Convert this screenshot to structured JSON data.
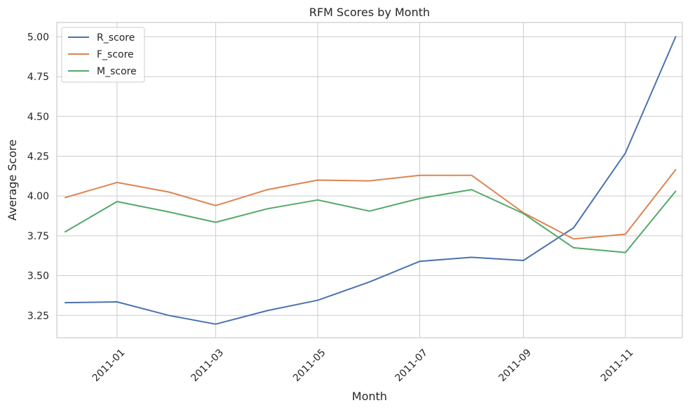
{
  "chart_data": {
    "type": "line",
    "title": "RFM Scores by Month",
    "xlabel": "Month",
    "ylabel": "Average Score",
    "x": [
      "2010-12",
      "2011-01",
      "2011-02",
      "2011-03",
      "2011-04",
      "2011-05",
      "2011-06",
      "2011-07",
      "2011-08",
      "2011-09",
      "2011-10",
      "2011-11",
      "2011-12"
    ],
    "x_tick_labels": [
      "2011-01",
      "2011-03",
      "2011-05",
      "2011-07",
      "2011-09",
      "2011-11"
    ],
    "x_tick_values": [
      "2011-01",
      "2011-03",
      "2011-05",
      "2011-07",
      "2011-09",
      "2011-11"
    ],
    "x_range": [
      "2010-11-26",
      "2011-12-05"
    ],
    "y_ticks": [
      3.25,
      3.5,
      3.75,
      4.0,
      4.25,
      4.5,
      4.75,
      5.0
    ],
    "y_tick_labels": [
      "3.25",
      "3.50",
      "3.75",
      "4.00",
      "4.25",
      "4.50",
      "4.75",
      "5.00"
    ],
    "ylim": [
      3.11,
      5.09
    ],
    "grid": true,
    "legend_position": "top-left",
    "series": [
      {
        "name": "R_score",
        "color": "#4c72b0",
        "values": [
          3.33,
          3.335,
          3.25,
          3.195,
          3.28,
          3.345,
          3.46,
          3.59,
          3.615,
          3.595,
          3.8,
          4.27,
          5.0
        ]
      },
      {
        "name": "F_score",
        "color": "#dd8452",
        "values": [
          3.99,
          4.085,
          4.025,
          3.94,
          4.04,
          4.1,
          4.095,
          4.13,
          4.13,
          3.895,
          3.73,
          3.76,
          4.165
        ]
      },
      {
        "name": "M_score",
        "color": "#55a868",
        "values": [
          3.775,
          3.965,
          3.9,
          3.835,
          3.92,
          3.975,
          3.905,
          3.985,
          4.04,
          3.89,
          3.675,
          3.645,
          4.03
        ]
      }
    ]
  }
}
